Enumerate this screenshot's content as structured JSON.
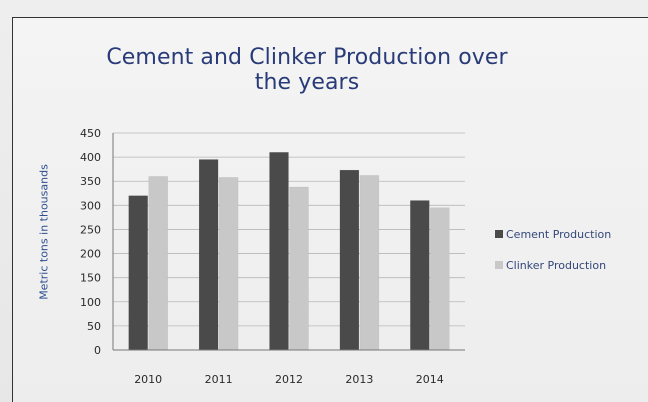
{
  "chart_data": {
    "type": "bar",
    "title": "Cement and Clinker Production over the years",
    "xlabel": "",
    "ylabel": "Metric tons in thousands",
    "categories": [
      "2010",
      "2011",
      "2012",
      "2013",
      "2014"
    ],
    "series": [
      {
        "name": "Cement Production",
        "values": [
          320,
          395,
          410,
          373,
          310
        ],
        "color": "#4a4a4a"
      },
      {
        "name": "Clinker Production",
        "values": [
          360,
          358,
          338,
          362,
          295
        ],
        "color": "#c8c8c8"
      }
    ],
    "ylim": [
      0,
      450
    ],
    "yticks": [
      0,
      50,
      100,
      150,
      200,
      250,
      300,
      350,
      400,
      450
    ],
    "grid": true,
    "legend_position": "right"
  }
}
